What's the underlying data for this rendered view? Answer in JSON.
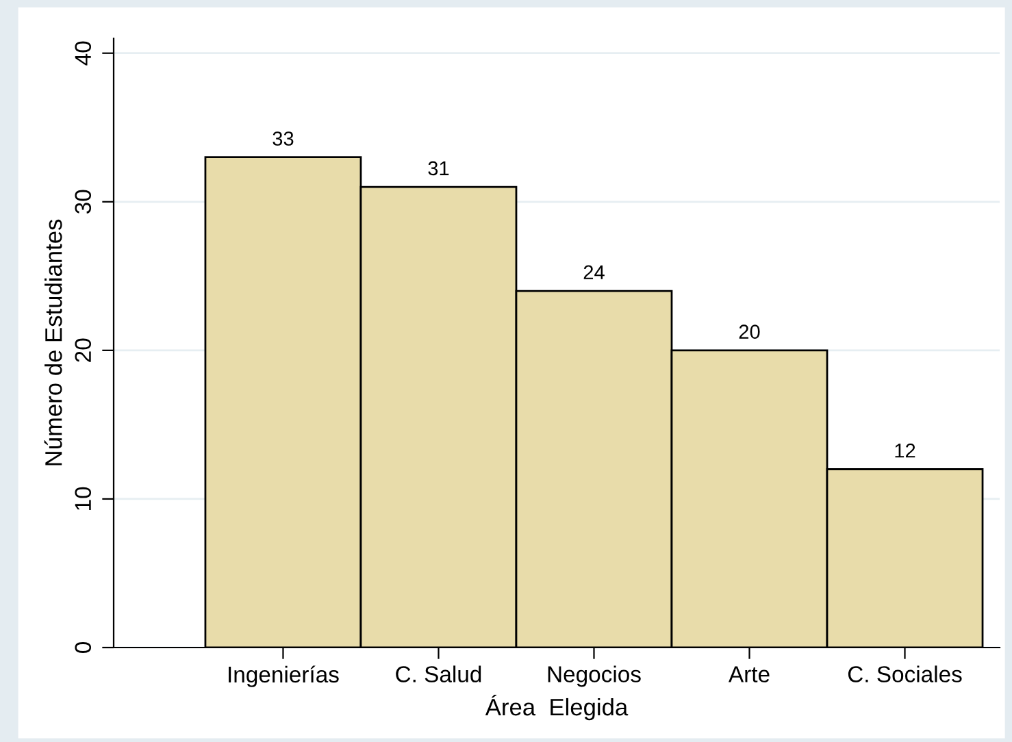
{
  "chart_data": {
    "type": "bar",
    "categories": [
      "Ingenierías",
      "C. Salud",
      "Negocios",
      "Arte",
      "C. Sociales"
    ],
    "values": [
      33,
      31,
      24,
      20,
      12
    ],
    "color": "#e8dcaa",
    "xlabel": "Área  Elegida",
    "ylabel": "Número de Estudiantes",
    "ylim": [
      0,
      41
    ],
    "yticks": [
      0,
      10,
      20,
      30,
      40
    ],
    "grid": "y",
    "data_labels": true
  }
}
